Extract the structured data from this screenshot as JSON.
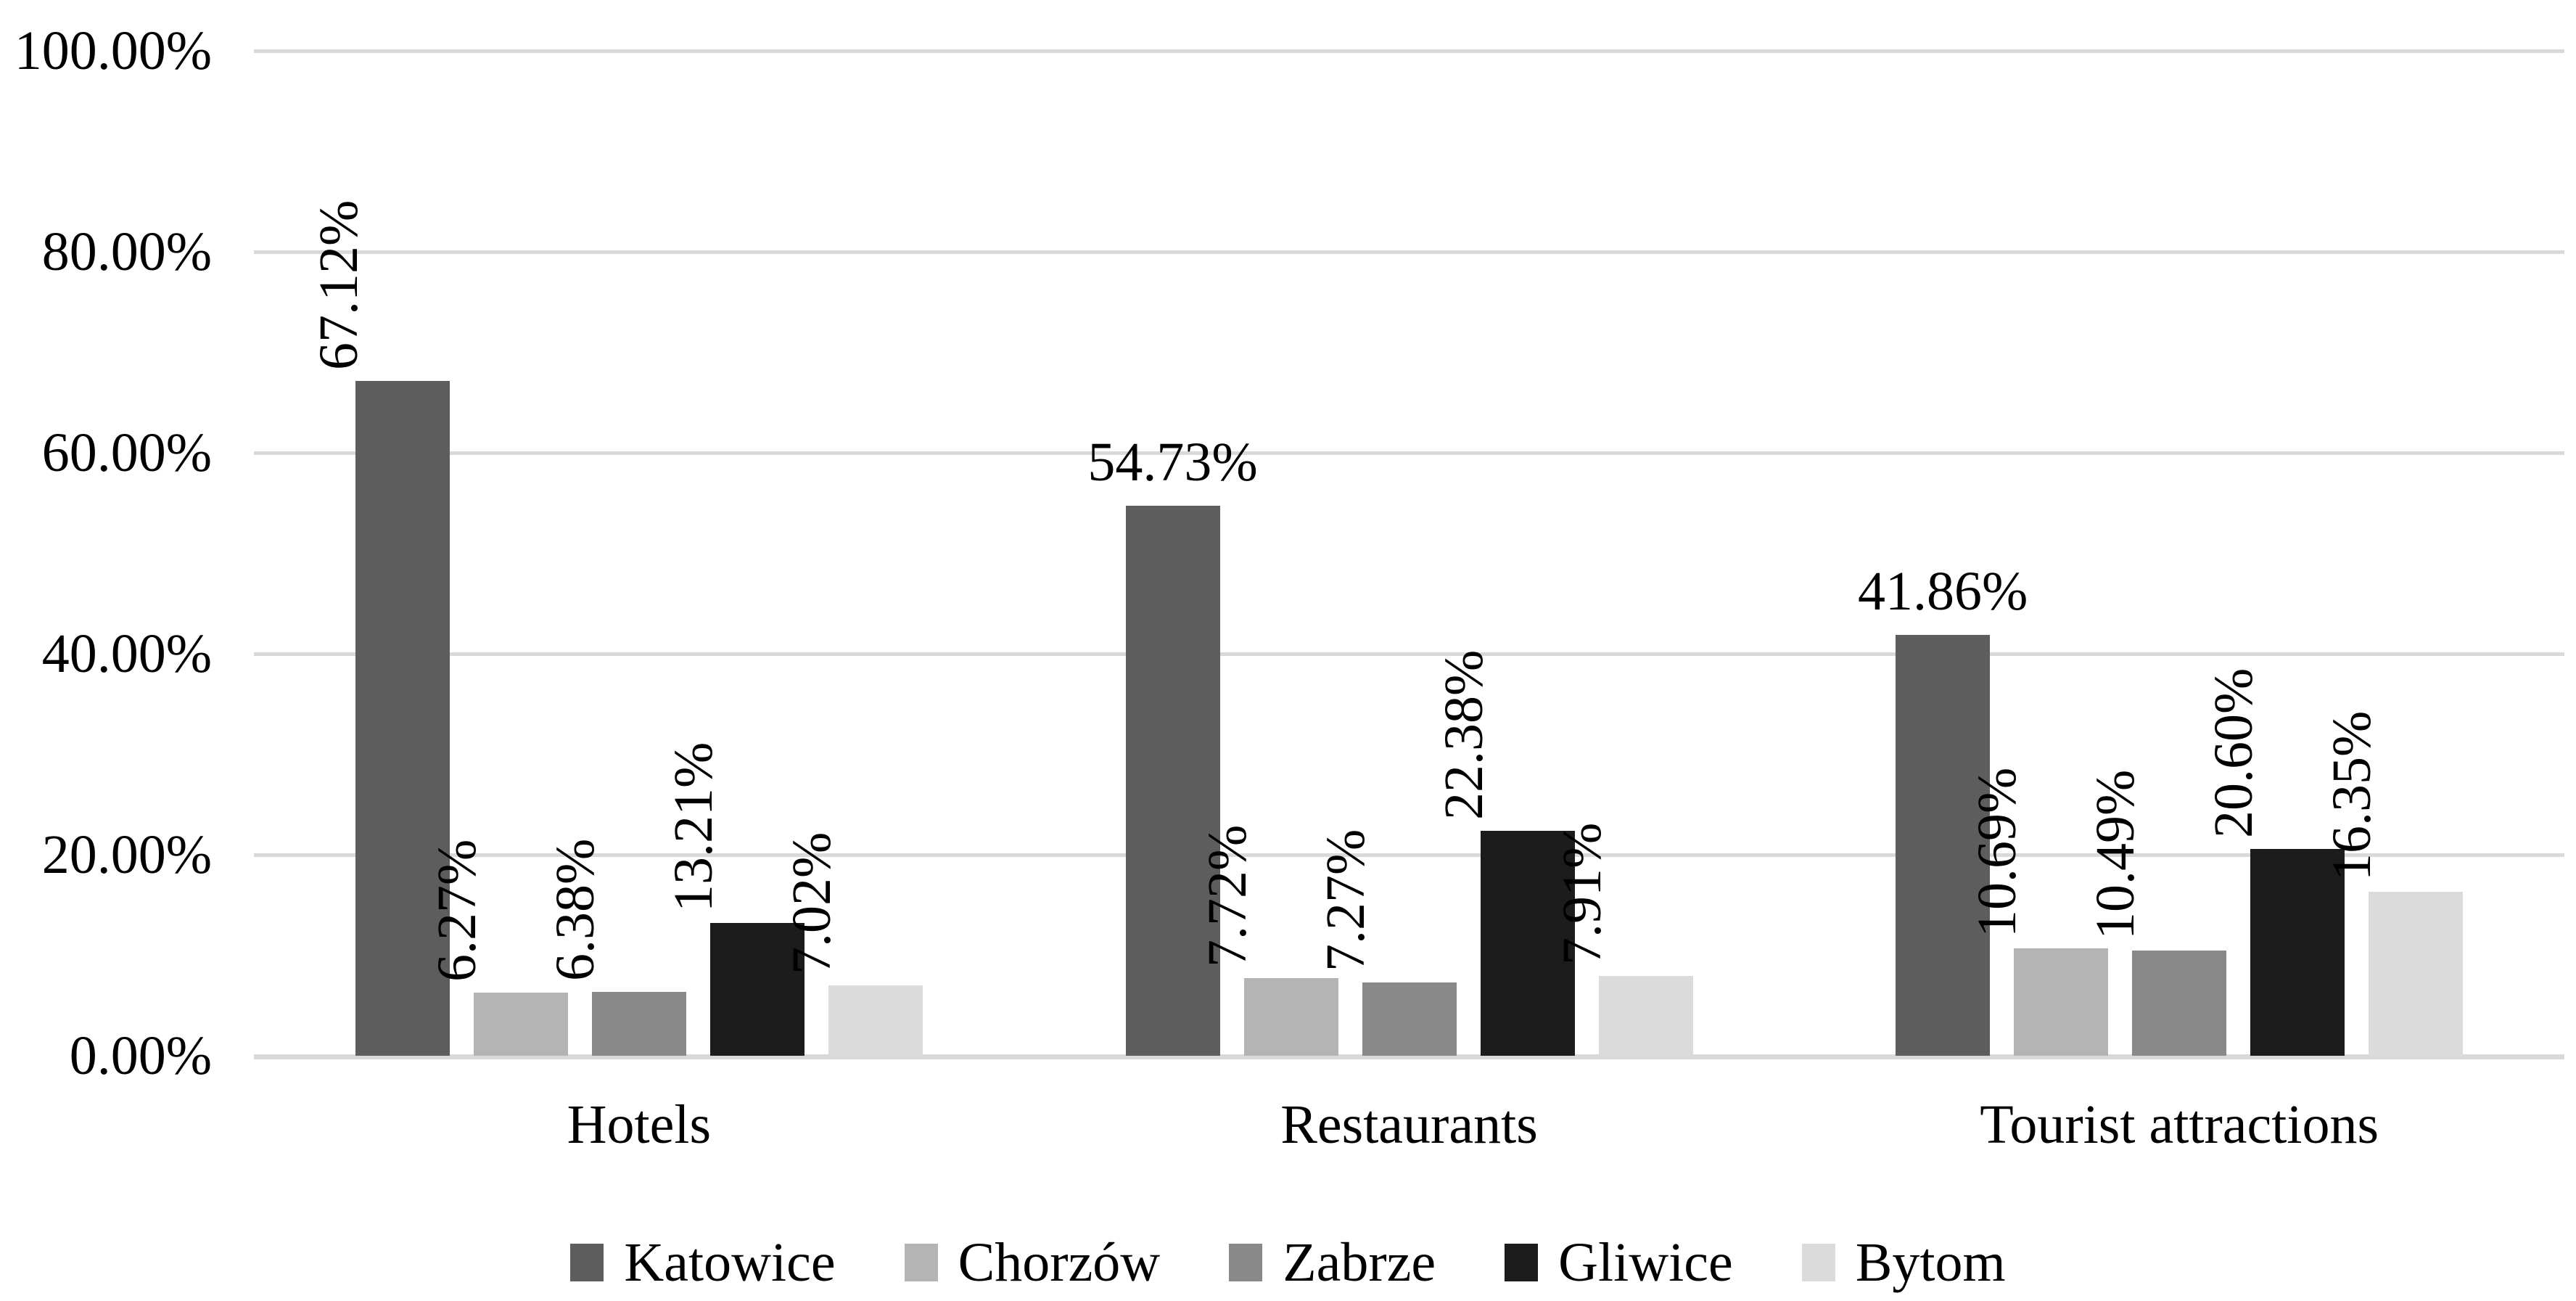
{
  "chart_data": {
    "type": "bar",
    "title": "",
    "xlabel": "",
    "ylabel": "",
    "categories": [
      "Hotels",
      "Restaurants",
      "Tourist attractions"
    ],
    "series": [
      {
        "name": "Katowice",
        "color": "#5d5d5d",
        "values": [
          67.12,
          54.73,
          41.86
        ]
      },
      {
        "name": "Chorzów",
        "color": "#b4b4b4",
        "values": [
          6.27,
          7.72,
          10.69
        ]
      },
      {
        "name": "Zabrze",
        "color": "#898989",
        "values": [
          6.38,
          7.27,
          10.49
        ]
      },
      {
        "name": "Gliwice",
        "color": "#1c1c1d",
        "values": [
          13.21,
          22.38,
          20.6
        ]
      },
      {
        "name": "Bytom",
        "color": "#dbdbdb",
        "values": [
          7.02,
          7.91,
          16.35
        ]
      }
    ],
    "value_labels": [
      [
        "67.12%",
        "6.27%",
        "6.38%",
        "13.21%",
        "7.02%"
      ],
      [
        "54.73%",
        "7.72%",
        "7.27%",
        "22.38%",
        "7.91%"
      ],
      [
        "41.86%",
        "10.69%",
        "10.49%",
        "20.60%",
        "16.35%"
      ]
    ],
    "label_orientation": [
      [
        "vertical",
        "vertical",
        "vertical",
        "vertical",
        "vertical"
      ],
      [
        "horizontal",
        "vertical",
        "vertical",
        "vertical",
        "vertical"
      ],
      [
        "horizontal",
        "vertical",
        "vertical",
        "vertical",
        "vertical"
      ]
    ],
    "y_axis": {
      "ticks": [
        "100.00%",
        "80.00%",
        "60.00%",
        "40.00%",
        "20.00%",
        "0.00%"
      ],
      "min": 0,
      "max": 100,
      "step": 20
    },
    "grid": true,
    "legend": {
      "position": "bottom",
      "entries": [
        "Katowice",
        "Chorzów",
        "Zabrze",
        "Gliwice",
        "Bytom"
      ]
    },
    "colors": {
      "gridline": "#d9d9d9",
      "text": "#000000",
      "background": "#ffffff"
    }
  }
}
